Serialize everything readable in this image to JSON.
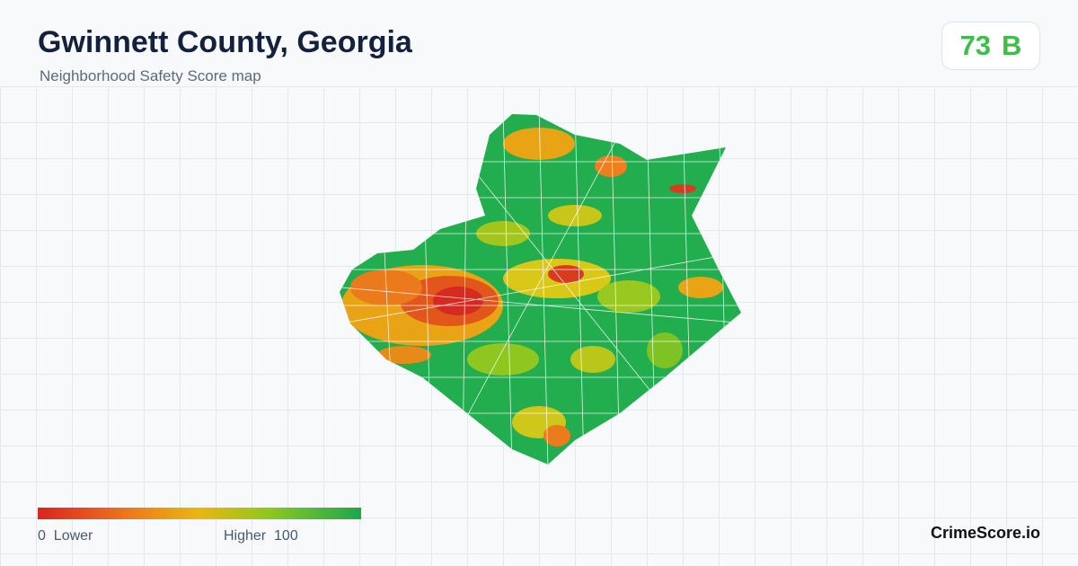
{
  "header": {
    "title": "Gwinnett County, Georgia",
    "subtitle": "Neighborhood Safety Score map"
  },
  "score": {
    "value": 73,
    "grade": "B"
  },
  "legend": {
    "min": 0,
    "min_label": "Lower",
    "max_label": "Higher",
    "max": 100
  },
  "footer": {
    "brand": "CrimeScore.io"
  }
}
